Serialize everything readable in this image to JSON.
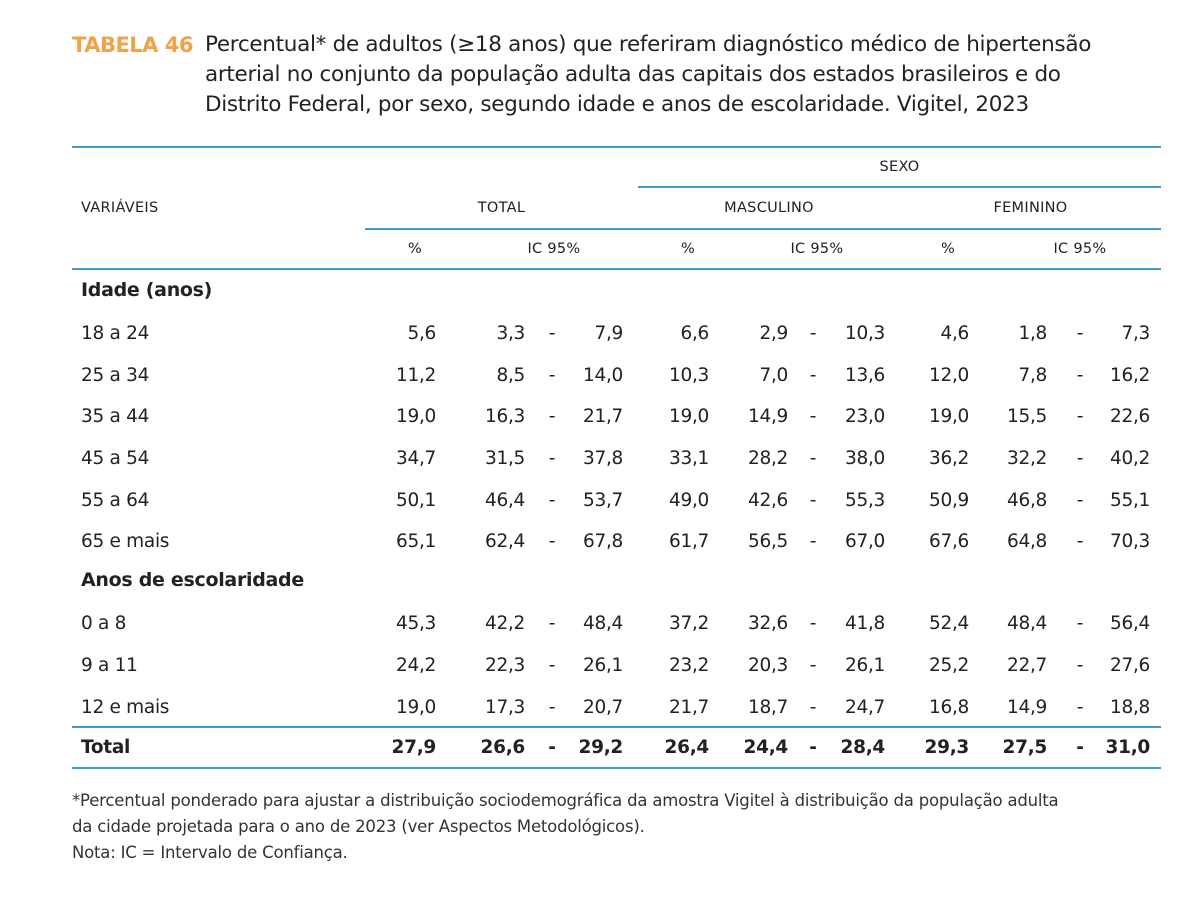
{
  "caption": {
    "label": "TABELA 46",
    "lines": [
      "Percentual* de adultos (≥18 anos) que referiram diagnóstico médico de hipertensão",
      "arterial no conjunto da população adulta das capitais dos estados brasileiros e do",
      "Distrito Federal, por sexo, segundo idade e anos de escolaridade. Vigitel, 2023"
    ]
  },
  "header": {
    "variables": "VARIÁVEIS",
    "sex": "SEXO",
    "total": "TOTAL",
    "male": "MASCULINO",
    "female": "FEMININO",
    "percent": "%",
    "ci": "IC 95%"
  },
  "groups": [
    {
      "title": "Idade (anos)",
      "rows": [
        {
          "label": "18 a 24",
          "cells": [
            "5,6",
            "3,3",
            "7,9",
            "6,6",
            "2,9",
            "10,3",
            "4,6",
            "1,8",
            "7,3"
          ]
        },
        {
          "label": "25 a 34",
          "cells": [
            "11,2",
            "8,5",
            "14,0",
            "10,3",
            "7,0",
            "13,6",
            "12,0",
            "7,8",
            "16,2"
          ]
        },
        {
          "label": "35 a 44",
          "cells": [
            "19,0",
            "16,3",
            "21,7",
            "19,0",
            "14,9",
            "23,0",
            "19,0",
            "15,5",
            "22,6"
          ]
        },
        {
          "label": "45 a 54",
          "cells": [
            "34,7",
            "31,5",
            "37,8",
            "33,1",
            "28,2",
            "38,0",
            "36,2",
            "32,2",
            "40,2"
          ]
        },
        {
          "label": "55 a 64",
          "cells": [
            "50,1",
            "46,4",
            "53,7",
            "49,0",
            "42,6",
            "55,3",
            "50,9",
            "46,8",
            "55,1"
          ]
        },
        {
          "label": "65 e mais",
          "cells": [
            "65,1",
            "62,4",
            "67,8",
            "61,7",
            "56,5",
            "67,0",
            "67,6",
            "64,8",
            "70,3"
          ]
        }
      ]
    },
    {
      "title": "Anos de escolaridade",
      "rows": [
        {
          "label": "0 a 8",
          "cells": [
            "45,3",
            "42,2",
            "48,4",
            "37,2",
            "32,6",
            "41,8",
            "52,4",
            "48,4",
            "56,4"
          ]
        },
        {
          "label": "9 a 11",
          "cells": [
            "24,2",
            "22,3",
            "26,1",
            "23,2",
            "20,3",
            "26,1",
            "25,2",
            "22,7",
            "27,6"
          ]
        },
        {
          "label": "12 e mais",
          "cells": [
            "19,0",
            "17,3",
            "20,7",
            "21,7",
            "18,7",
            "24,7",
            "16,8",
            "14,9",
            "18,8"
          ]
        }
      ]
    }
  ],
  "total_row": {
    "label": "Total",
    "cells": [
      "27,9",
      "26,6",
      "29,2",
      "26,4",
      "24,4",
      "28,4",
      "29,3",
      "27,5",
      "31,0"
    ]
  },
  "separator": "-",
  "footnotes": [
    "*Percentual ponderado para ajustar a distribuição sociodemográfica da amostra Vigitel à distribuição da população adulta",
    "da cidade projetada para o ano de 2023 (ver Aspectos Metodológicos).",
    "Nota: IC = Intervalo de Confiança."
  ],
  "colors": {
    "accent": "#F0A24A",
    "rule": "#3B9AD0"
  }
}
